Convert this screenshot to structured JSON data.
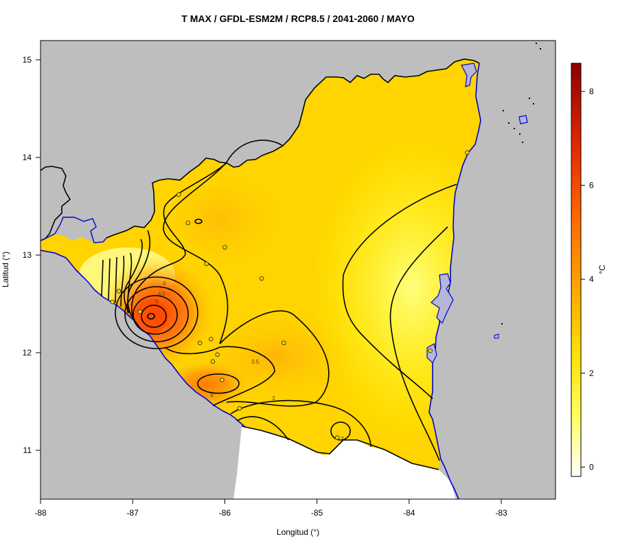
{
  "title": "T MAX / GFDL-ESM2M / RCP8.5 / 2041-2060 / MAYO",
  "xlabel": "Longitud (°)",
  "ylabel": "Latitud (°)",
  "x_ticks": [
    "-88",
    "-87",
    "-86",
    "-85",
    "-84",
    "-83"
  ],
  "y_ticks": [
    "11",
    "12",
    "13",
    "14",
    "15"
  ],
  "colorbar": {
    "unit": "°C",
    "ticks": [
      "0",
      "2",
      "4",
      "6",
      "8"
    ],
    "range": [
      -0.2,
      8.6
    ],
    "colors": [
      "#ffffff",
      "#ffff66",
      "#ffd700",
      "#ff9900",
      "#ff4400",
      "#8b0000"
    ]
  },
  "contour_labels": [
    "4",
    "4.5",
    "5",
    "3.5",
    "4",
    "3",
    "3"
  ],
  "colors": {
    "land_background": "#bebebe",
    "water_outline": "#0000cc",
    "lake_fill": "#b6b6d8",
    "contour": "#000000"
  },
  "chart_data": {
    "type": "heatmap",
    "title": "T MAX / GFDL-ESM2M / RCP8.5 / 2041-2060 / MAYO",
    "xlabel": "Longitud (°)",
    "ylabel": "Latitud (°)",
    "xlim": [
      -88,
      -82.5
    ],
    "ylim": [
      10.5,
      15.2
    ],
    "contour_levels": [
      3,
      3.5,
      4,
      4.5,
      5
    ],
    "colorbar_range": [
      -0.2,
      8.6
    ],
    "colorbar_unit": "°C",
    "max_region": {
      "lon": -86.8,
      "lat": 12.38,
      "value": 5.5
    },
    "stations": [
      {
        "lon": -86.5,
        "lat": 13.62
      },
      {
        "lon": -86.4,
        "lat": 13.33
      },
      {
        "lon": -86.0,
        "lat": 13.08
      },
      {
        "lon": -86.2,
        "lat": 12.91
      },
      {
        "lon": -85.6,
        "lat": 12.76
      },
      {
        "lon": -87.15,
        "lat": 12.63
      },
      {
        "lon": -87.22,
        "lat": 12.52
      },
      {
        "lon": -86.92,
        "lat": 12.42
      },
      {
        "lon": -86.27,
        "lat": 12.1
      },
      {
        "lon": -86.15,
        "lat": 12.14
      },
      {
        "lon": -85.36,
        "lat": 12.1
      },
      {
        "lon": -86.08,
        "lat": 11.98
      },
      {
        "lon": -86.13,
        "lat": 11.91
      },
      {
        "lon": -86.03,
        "lat": 11.72
      },
      {
        "lon": -85.84,
        "lat": 11.43
      },
      {
        "lon": -84.78,
        "lat": 11.13
      },
      {
        "lon": -83.77,
        "lat": 12.02
      },
      {
        "lon": -83.37,
        "lat": 14.05
      }
    ]
  }
}
